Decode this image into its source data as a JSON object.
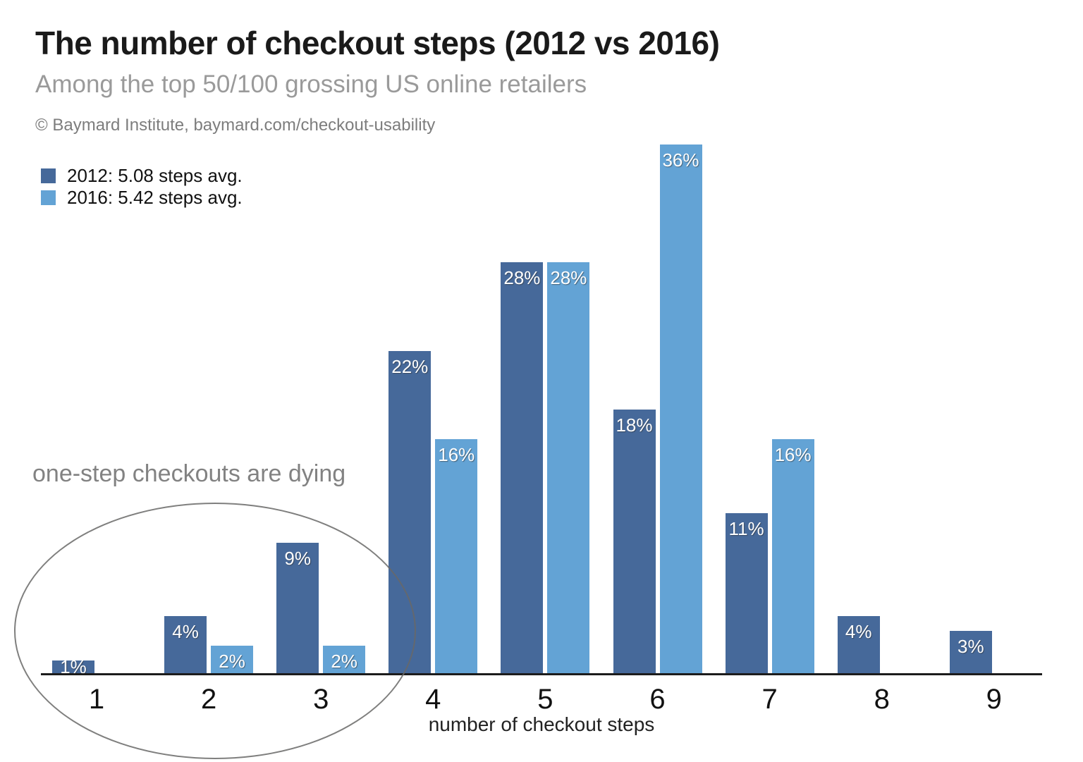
{
  "header": {
    "title": "The number of checkout steps (2012 vs 2016)",
    "subtitle": "Among the top 50/100 grossing US online retailers",
    "attribution": "© Baymard Institute, baymard.com/checkout-usability"
  },
  "legend": {
    "items": [
      {
        "label": "2012: 5.08 steps avg.",
        "color": "#46699a"
      },
      {
        "label": "2016: 5.42 steps avg.",
        "color": "#63a3d5"
      }
    ]
  },
  "annotation": {
    "text": "one-step checkouts are dying"
  },
  "chart_data": {
    "type": "bar",
    "categories": [
      "1",
      "2",
      "3",
      "4",
      "5",
      "6",
      "7",
      "8",
      "9"
    ],
    "series": [
      {
        "name": "2012",
        "color": "#46699a",
        "values": [
          1,
          4,
          9,
          22,
          28,
          18,
          11,
          4,
          3
        ]
      },
      {
        "name": "2016",
        "color": "#63a3d5",
        "values": [
          null,
          2,
          2,
          16,
          28,
          36,
          16,
          null,
          null
        ]
      }
    ],
    "title": "The number of checkout steps (2012 vs 2016)",
    "subtitle": "Among the top 50/100 grossing US online retailers",
    "xlabel": "number of checkout steps",
    "ylabel": "",
    "ylim": [
      0,
      38
    ],
    "grid": false,
    "legend_position": "top-left",
    "data_label_suffix": "%",
    "annotation": "one-step checkouts are dying",
    "annotation_circled_categories": [
      "1",
      "2",
      "3"
    ]
  }
}
